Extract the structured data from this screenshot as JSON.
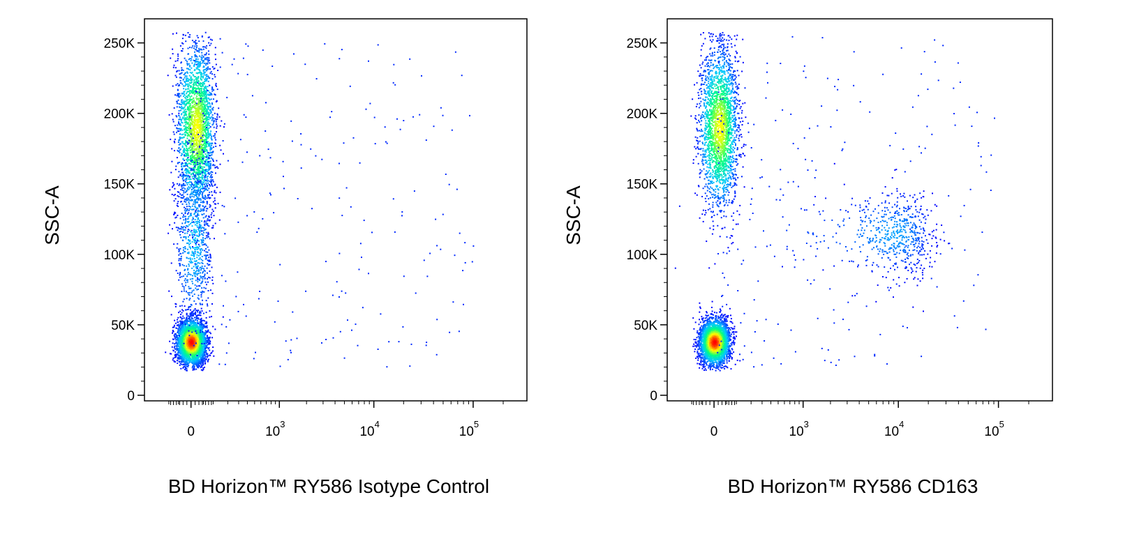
{
  "chart_data": [
    {
      "type": "scatter",
      "subtype": "flow-cytometry-density-dot-plot",
      "title": "",
      "xlabel": "BD Horizon™ RY586 Isotype Control",
      "ylabel": "SSC-A",
      "x_scale": "biexponential",
      "xlim": [
        -200,
        200000
      ],
      "ylim": [
        0,
        262144
      ],
      "x_ticks": [
        {
          "value": 0,
          "base": "0",
          "exp": ""
        },
        {
          "value": 1000,
          "base": "10",
          "exp": "3"
        },
        {
          "value": 10000,
          "base": "10",
          "exp": "4"
        },
        {
          "value": 100000,
          "base": "10",
          "exp": "5"
        }
      ],
      "y_ticks": [
        {
          "value": 0,
          "label": "0"
        },
        {
          "value": 50000,
          "label": "50K"
        },
        {
          "value": 100000,
          "label": "100K"
        },
        {
          "value": 150000,
          "label": "150K"
        },
        {
          "value": 200000,
          "label": "200K"
        },
        {
          "value": 250000,
          "label": "250K"
        }
      ],
      "populations": [
        {
          "x": 0,
          "y": 38000,
          "x_spread": 30,
          "y_spread": 8000,
          "relative_density": 1.0
        },
        {
          "x": 20,
          "y": 190000,
          "x_spread": 40,
          "y_spread": 30000,
          "relative_density": 0.75
        },
        {
          "x": 10,
          "y": 110000,
          "x_spread": 40,
          "y_spread": 35000,
          "relative_density": 0.25
        }
      ],
      "color_scale": [
        "#0000ff",
        "#00c8ff",
        "#00ff80",
        "#ffff00",
        "#ff0000"
      ],
      "grid": false,
      "legend": "none"
    },
    {
      "type": "scatter",
      "subtype": "flow-cytometry-density-dot-plot",
      "title": "",
      "xlabel": "BD Horizon™ RY586  CD163",
      "ylabel": "SSC-A",
      "x_scale": "biexponential",
      "xlim": [
        -200,
        200000
      ],
      "ylim": [
        0,
        262144
      ],
      "x_ticks": [
        {
          "value": 0,
          "base": "0",
          "exp": ""
        },
        {
          "value": 1000,
          "base": "10",
          "exp": "3"
        },
        {
          "value": 10000,
          "base": "10",
          "exp": "4"
        },
        {
          "value": 100000,
          "base": "10",
          "exp": "5"
        }
      ],
      "y_ticks": [
        {
          "value": 0,
          "label": "0"
        },
        {
          "value": 50000,
          "label": "50K"
        },
        {
          "value": 100000,
          "label": "100K"
        },
        {
          "value": 150000,
          "label": "150K"
        },
        {
          "value": 200000,
          "label": "200K"
        },
        {
          "value": 250000,
          "label": "250K"
        }
      ],
      "populations": [
        {
          "x": 0,
          "y": 38000,
          "x_spread": 30,
          "y_spread": 8000,
          "relative_density": 1.0
        },
        {
          "x": 20,
          "y": 190000,
          "x_spread": 40,
          "y_spread": 28000,
          "relative_density": 0.75
        },
        {
          "x": 9000,
          "y": 115000,
          "x_spread": 6000,
          "y_spread": 15000,
          "relative_density": 0.2
        }
      ],
      "color_scale": [
        "#0000ff",
        "#00c8ff",
        "#00ff80",
        "#ffff00",
        "#ff0000"
      ],
      "grid": false,
      "legend": "none"
    }
  ]
}
